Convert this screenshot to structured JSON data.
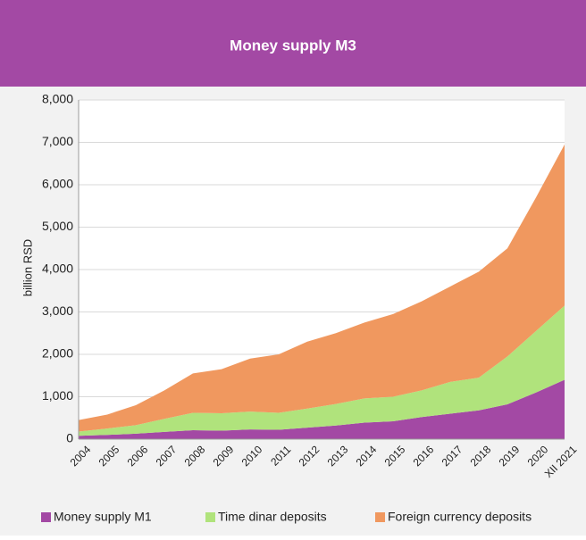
{
  "chart_data": {
    "type": "stacked_area",
    "title": "Money supply M3",
    "y_label": "billion RSD",
    "categories": [
      "2004",
      "2005",
      "2006",
      "2007",
      "2008",
      "2009",
      "2010",
      "2011",
      "2012",
      "2013",
      "2014",
      "2015",
      "2016",
      "2017",
      "2018",
      "2019",
      "2020",
      "XII 2021"
    ],
    "series": [
      {
        "name": "Money supply M1",
        "color": "#a349a4",
        "values": [
          80,
          100,
          130,
          170,
          210,
          200,
          230,
          220,
          270,
          320,
          390,
          420,
          520,
          600,
          680,
          820,
          1100,
          1400
        ]
      },
      {
        "name": "Time dinar deposits",
        "color": "#b0e37c",
        "values": [
          100,
          150,
          200,
          310,
          410,
          410,
          420,
          400,
          450,
          510,
          570,
          580,
          630,
          750,
          770,
          1130,
          1450,
          1750
        ]
      },
      {
        "name": "Foreign currency deposits",
        "color": "#f0985f",
        "values": [
          270,
          330,
          470,
          670,
          930,
          1040,
          1250,
          1380,
          1580,
          1670,
          1790,
          1950,
          2100,
          2250,
          2500,
          2550,
          3150,
          3800
        ]
      }
    ],
    "ylim": [
      0,
      8000
    ],
    "yticks": [
      0,
      {
        "value": 1000,
        "label": "1,000"
      },
      {
        "value": 2000,
        "label": "2,000"
      },
      {
        "value": 3000,
        "label": "3,000"
      },
      {
        "value": 4000,
        "label": "4,000"
      },
      {
        "value": 5000,
        "label": "5,000"
      },
      {
        "value": 6000,
        "label": "6,000"
      },
      {
        "value": 7000,
        "label": "7,000"
      },
      {
        "value": 8000,
        "label": "8,000"
      }
    ],
    "grid": true,
    "legend": "bottom"
  }
}
